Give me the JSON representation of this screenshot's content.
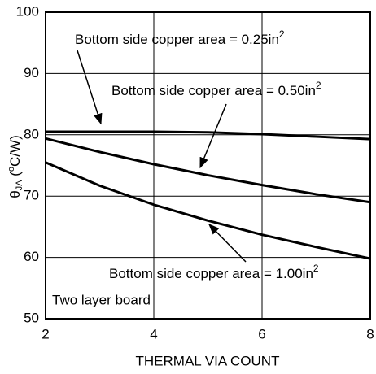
{
  "chart_data": {
    "type": "line",
    "xlabel": "THERMAL VIA COUNT",
    "ylabel": [
      "θ",
      "JA",
      " (",
      "o",
      "C/W)"
    ],
    "x": [
      2,
      3,
      4,
      5,
      6,
      7,
      8
    ],
    "series": [
      {
        "name": "Bottom side copper area = 0.25in",
        "sup": "2",
        "color": "#000000",
        "values": [
          80.5,
          80.5,
          80.5,
          80.4,
          80.1,
          79.7,
          79.3
        ]
      },
      {
        "name": "Bottom side copper area = 0.50in",
        "sup": "2",
        "color": "#000000",
        "values": [
          79.4,
          77.2,
          75.2,
          73.4,
          71.8,
          70.3,
          69.0
        ]
      },
      {
        "name": "Bottom side copper area = 1.00in",
        "sup": "2",
        "color": "#000000",
        "values": [
          75.5,
          71.7,
          68.6,
          66.0,
          63.7,
          61.7,
          59.8
        ]
      }
    ],
    "annotations": [
      "Two layer board"
    ],
    "xlim": [
      2,
      8
    ],
    "xticks": [
      2,
      4,
      6,
      8
    ],
    "ylim": [
      50,
      100
    ],
    "yticks": [
      50,
      60,
      70,
      80,
      90,
      100
    ],
    "grid": true
  }
}
